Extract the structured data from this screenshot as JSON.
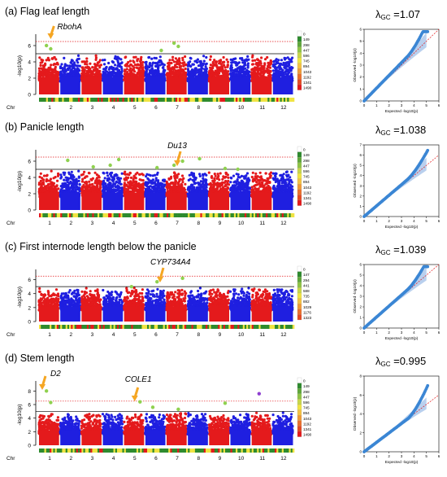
{
  "chart_data": [
    {
      "type": "scatter",
      "subtype": "manhattan",
      "panel_label": "(a)",
      "title": "Flag leaf length",
      "xlabel": "Chr",
      "ylabel": "-log10(p)",
      "ylim": [
        0,
        7
      ],
      "yticks": [
        0,
        2,
        4,
        6
      ],
      "chromosomes": [
        "1",
        "2",
        "3",
        "4",
        "5",
        "6",
        "7",
        "8",
        "9",
        "10",
        "11",
        "12"
      ],
      "suggestive_threshold": 5.0,
      "significant_threshold": 6.5,
      "density_legend": [
        "0",
        "149",
        "298",
        "447",
        "596",
        "745",
        "894",
        "1043",
        "1192",
        "1341",
        "1490"
      ],
      "annotations": [
        {
          "label": "RbohA",
          "chr": 1
        }
      ],
      "highlighted_points": [
        {
          "chr": 1,
          "y": 6.0
        },
        {
          "chr": 1,
          "y": 5.6
        },
        {
          "chr": 6,
          "y": 5.4
        },
        {
          "chr": 7,
          "y": 6.3
        },
        {
          "chr": 7,
          "y": 5.9
        }
      ],
      "qq": {
        "xlabel": "Expected -log10(p)",
        "ylabel": "Observed -log10(p)",
        "lambda_gc": "1.07",
        "xlim": [
          0,
          6
        ],
        "ylim": [
          0,
          6
        ],
        "xticks": [
          0,
          1,
          2,
          3,
          4,
          5,
          6
        ],
        "yticks": [
          0,
          1,
          2,
          3,
          4,
          5,
          6
        ]
      }
    },
    {
      "type": "scatter",
      "subtype": "manhattan",
      "panel_label": "(b)",
      "title": "Panicle length",
      "xlabel": "Chr",
      "ylabel": "-log10(p)",
      "ylim": [
        0,
        7
      ],
      "yticks": [
        0,
        2,
        4,
        6
      ],
      "chromosomes": [
        "1",
        "2",
        "3",
        "4",
        "5",
        "6",
        "7",
        "8",
        "9",
        "10",
        "11",
        "12"
      ],
      "suggestive_threshold": 5.0,
      "significant_threshold": 6.5,
      "density_legend": [
        "0",
        "149",
        "298",
        "447",
        "596",
        "745",
        "894",
        "1043",
        "1192",
        "1341",
        "1490"
      ],
      "annotations": [
        {
          "label": "Du13",
          "chr": 7
        }
      ],
      "highlighted_points": [
        {
          "chr": 2,
          "y": 6.1
        },
        {
          "chr": 3,
          "y": 5.3
        },
        {
          "chr": 4,
          "y": 6.2
        },
        {
          "chr": 4,
          "y": 5.5
        },
        {
          "chr": 6,
          "y": 5.2
        },
        {
          "chr": 7,
          "y": 6.0
        },
        {
          "chr": 7,
          "y": 5.5
        },
        {
          "chr": 8,
          "y": 6.3
        },
        {
          "chr": 9,
          "y": 5.1
        },
        {
          "chr": 10,
          "y": 5.0
        }
      ],
      "qq": {
        "xlabel": "Expected -log10(p)",
        "ylabel": "Observed -log10(p)",
        "lambda_gc": "1.038",
        "xlim": [
          0,
          6
        ],
        "ylim": [
          0,
          7
        ],
        "xticks": [
          0,
          1,
          2,
          3,
          4,
          5,
          6
        ],
        "yticks": [
          0,
          1,
          2,
          3,
          4,
          5,
          6,
          7
        ]
      }
    },
    {
      "type": "scatter",
      "subtype": "manhattan",
      "panel_label": "(c)",
      "title": "First internode length below the panicle",
      "xlabel": "Chr",
      "ylabel": "-log10(p)",
      "ylim": [
        0,
        7
      ],
      "yticks": [
        0,
        2,
        4,
        6
      ],
      "chromosomes": [
        "1",
        "2",
        "3",
        "4",
        "5",
        "6",
        "7",
        "8",
        "9",
        "10",
        "11",
        "12"
      ],
      "suggestive_threshold": 5.0,
      "significant_threshold": 6.5,
      "density_legend": [
        "0",
        "147",
        "294",
        "441",
        "588",
        "735",
        "882",
        "1029",
        "1176",
        "1323"
      ],
      "annotations": [
        {
          "label": "CYP734A4",
          "chr": 7
        }
      ],
      "highlighted_points": [
        {
          "chr": 5,
          "y": 5.0
        },
        {
          "chr": 6,
          "y": 5.7
        },
        {
          "chr": 7,
          "y": 6.2
        }
      ],
      "qq": {
        "xlabel": "Expected -log10(p)",
        "ylabel": "Observed -log10(p)",
        "lambda_gc": "1.039",
        "xlim": [
          0,
          6
        ],
        "ylim": [
          0,
          6
        ],
        "xticks": [
          0,
          1,
          2,
          3,
          4,
          5,
          6
        ],
        "yticks": [
          0,
          1,
          2,
          3,
          4,
          5,
          6
        ]
      }
    },
    {
      "type": "scatter",
      "subtype": "manhattan",
      "panel_label": "(d)",
      "title": "Stem length",
      "xlabel": "Chr",
      "ylabel": "-log10(p)",
      "ylim": [
        0,
        9
      ],
      "yticks": [
        0,
        2,
        4,
        6,
        8
      ],
      "chromosomes": [
        "1",
        "2",
        "3",
        "4",
        "5",
        "6",
        "7",
        "8",
        "9",
        "10",
        "11",
        "12"
      ],
      "suggestive_threshold": 5.0,
      "significant_threshold": 6.5,
      "density_legend": [
        "0",
        "149",
        "298",
        "447",
        "596",
        "745",
        "894",
        "1043",
        "1192",
        "1341",
        "1490"
      ],
      "annotations": [
        {
          "label": "D2",
          "chr": 1
        },
        {
          "label": "COLE1",
          "chr": 5
        }
      ],
      "highlighted_points": [
        {
          "chr": 1,
          "y": 8.0
        },
        {
          "chr": 1,
          "y": 6.3
        },
        {
          "chr": 5,
          "y": 6.4
        },
        {
          "chr": 6,
          "y": 5.6
        },
        {
          "chr": 7,
          "y": 5.3
        },
        {
          "chr": 9,
          "y": 6.2
        },
        {
          "chr": 11,
          "y": 7.6
        }
      ],
      "qq": {
        "xlabel": "Expected -log10(p)",
        "ylabel": "Observed -log10(p)",
        "lambda_gc": "0.995",
        "xlim": [
          0,
          6
        ],
        "ylim": [
          0,
          8
        ],
        "xticks": [
          0,
          1,
          2,
          3,
          4,
          5,
          6
        ],
        "yticks": [
          0,
          2,
          4,
          6,
          8
        ]
      }
    }
  ],
  "colors": {
    "chr_odd": "#e41a1c",
    "chr_even": "#1f1fe0",
    "highlight": "#8fd14f",
    "arrow": "#f5a623",
    "suggestive_line": "#000000",
    "significant_line": "#e41a1c",
    "qq_points": "#3b86d4",
    "qq_band": "#a7c4ea",
    "qq_diagonal": "#e41a1c",
    "density_low": "#2e8b2e",
    "density_mid": "#f0e442",
    "density_high": "#e41a1c"
  }
}
